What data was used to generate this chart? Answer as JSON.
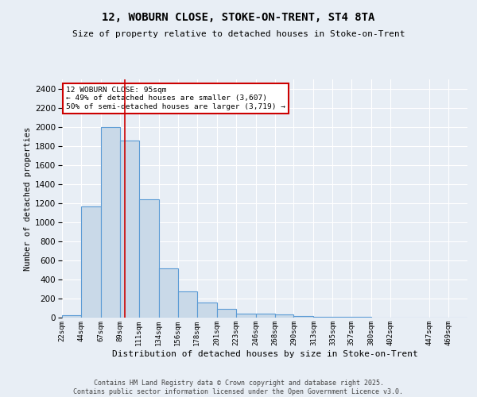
{
  "title_line1": "12, WOBURN CLOSE, STOKE-ON-TRENT, ST4 8TA",
  "title_line2": "Size of property relative to detached houses in Stoke-on-Trent",
  "xlabel": "Distribution of detached houses by size in Stoke-on-Trent",
  "ylabel": "Number of detached properties",
  "bar_labels": [
    "22sqm",
    "44sqm",
    "67sqm",
    "89sqm",
    "111sqm",
    "134sqm",
    "156sqm",
    "178sqm",
    "201sqm",
    "223sqm",
    "246sqm",
    "268sqm",
    "290sqm",
    "313sqm",
    "335sqm",
    "357sqm",
    "380sqm",
    "402sqm",
    "447sqm",
    "469sqm"
  ],
  "bar_values": [
    25,
    1170,
    2000,
    1860,
    1240,
    520,
    275,
    155,
    90,
    45,
    40,
    35,
    20,
    10,
    5,
    5,
    3,
    2,
    2,
    2
  ],
  "bar_color": "#c9d9e8",
  "bar_edgecolor": "#5b9bd5",
  "background_color": "#e8eef5",
  "grid_color": "#ffffff",
  "annotation_box_text": "12 WOBURN CLOSE: 95sqm\n← 49% of detached houses are smaller (3,607)\n50% of semi-detached houses are larger (3,719) →",
  "annotation_box_color": "#ffffff",
  "annotation_box_edgecolor": "#cc0000",
  "red_line_x": 95,
  "bin_edges": [
    22,
    44,
    67,
    89,
    111,
    134,
    156,
    178,
    201,
    223,
    246,
    268,
    290,
    313,
    335,
    357,
    380,
    402,
    447,
    469,
    491
  ],
  "footer_text": "Contains HM Land Registry data © Crown copyright and database right 2025.\nContains public sector information licensed under the Open Government Licence v3.0.",
  "ylim": [
    0,
    2500
  ],
  "yticks": [
    0,
    200,
    400,
    600,
    800,
    1000,
    1200,
    1400,
    1600,
    1800,
    2000,
    2200,
    2400
  ]
}
